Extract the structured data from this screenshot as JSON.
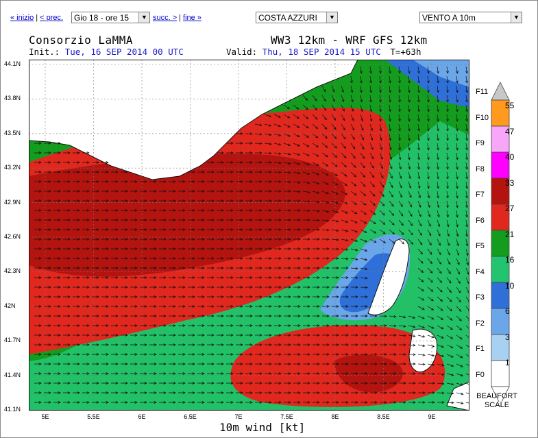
{
  "nav": {
    "first": "« inizio",
    "prev": "< prec.",
    "next": "succ. >",
    "last": "fine »",
    "date_select": "Gio 18 - ore 15",
    "area_select": "COSTA AZZURI",
    "param_select": "VENTO A 10m"
  },
  "header": {
    "org": "Consorzio LaMMA",
    "model": "WW3 12km - WRF GFS 12km",
    "init_label": "Init.:",
    "init_value": "Tue, 16 SEP 2014  00 UTC",
    "valid_label": "Valid:",
    "valid_value": "Thu, 18 SEP 2014  15 UTC",
    "lead": "T=+63h"
  },
  "axes": {
    "lat_labels": [
      "44.1N",
      "43.8N",
      "43.5N",
      "43.2N",
      "42.9N",
      "42.6N",
      "42.3N",
      "42N",
      "41.7N",
      "41.4N",
      "41.1N"
    ],
    "lon_labels": [
      "5E",
      "5.5E",
      "6E",
      "6.5E",
      "7E",
      "7.5E",
      "8E",
      "8.5E",
      "9E"
    ],
    "xtitle": "10m wind [kt]"
  },
  "legend": {
    "beaufort": [
      "F11",
      "F10",
      "F9",
      "F8",
      "F7",
      "F6",
      "F5",
      "F4",
      "F3",
      "F2",
      "F1",
      "F0"
    ],
    "knots": [
      "55",
      "47",
      "40",
      "33",
      "27",
      "21",
      "16",
      "10",
      "6",
      "3",
      "1"
    ],
    "title_line1": "BEAUFORT",
    "title_line2": "SCALE",
    "colors": [
      "#ffffff",
      "#a8d0f0",
      "#6aa6e8",
      "#2f6fd8",
      "#23c46f",
      "#149c1e",
      "#e0281e",
      "#b4140f",
      "#ff00ff",
      "#f8a6f8",
      "#ff9a1e"
    ]
  },
  "palette": {
    "land": "#ffffff",
    "dark_red": "#b4140f",
    "red": "#e0281e",
    "green": "#149c1e",
    "light_green": "#23c46f",
    "blue": "#2f6fd8",
    "light_blue": "#6aa6e8"
  }
}
